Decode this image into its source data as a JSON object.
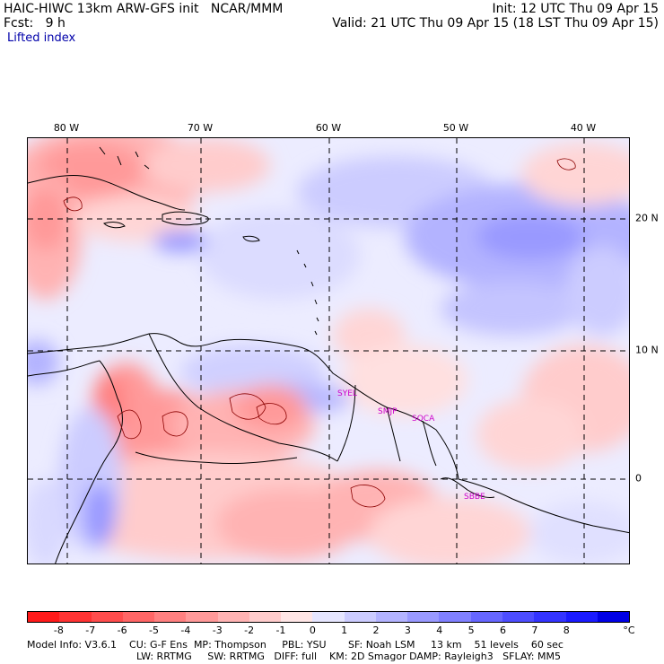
{
  "header": {
    "model_line": "HAIC-HIWC 13km ARW-GFS init   NCAR/MMM",
    "init_line": "Init: 12 UTC Thu 09 Apr 15",
    "fcst_line": "Fcst:   9 h",
    "valid_line": "Valid: 21 UTC Thu 09 Apr 15 (18 LST Thu 09 Apr 15)",
    "field_name": "Lifted index"
  },
  "map": {
    "lon_labels": [
      "80 W",
      "70 W",
      "60 W",
      "50 W",
      "40 W"
    ],
    "lat_labels": [
      "20 N",
      "10 N",
      "0"
    ],
    "stations": [
      "SYEL",
      "SMJP",
      "SOCA",
      "SBBE"
    ]
  },
  "colorbar": {
    "unit": "°C",
    "ticks": [
      "-8",
      "-7",
      "-6",
      "-5",
      "-4",
      "-3",
      "-2",
      "-1",
      "0",
      "1",
      "2",
      "3",
      "4",
      "5",
      "6",
      "7",
      "8"
    ],
    "colors": [
      "#ff1a1a",
      "#ff3333",
      "#ff4d4d",
      "#ff6666",
      "#ff8080",
      "#ff9999",
      "#ffb3b3",
      "#ffcccc",
      "#ffe6e6",
      "#e6e6ff",
      "#ccccff",
      "#b3b3ff",
      "#9999ff",
      "#8080ff",
      "#6666ff",
      "#4d4dff",
      "#3333ff",
      "#1a1aff",
      "#0000e6"
    ]
  },
  "footer": {
    "line1": "Model Info: V3.6.1    CU: G-F Ens  MP: Thompson     PBL: YSU       SF: Noah LSM     13 km    51 levels    60 sec",
    "line2": "LW: RRTMG     SW: RRTMG   DIFF: full    KM: 2D Smagor DAMP: Rayleigh3   SFLAY: MM5"
  }
}
